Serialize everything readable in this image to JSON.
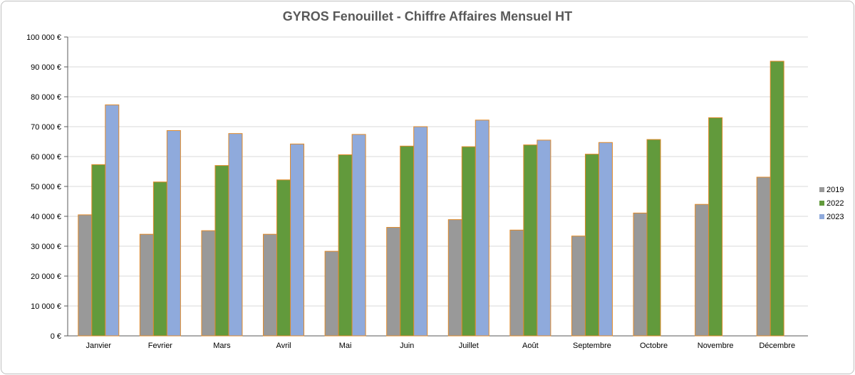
{
  "chart_data": {
    "type": "bar",
    "title": "GYROS Fenouillet - Chiffre Affaires Mensuel HT",
    "xlabel": "",
    "ylabel": "",
    "ylim": [
      0,
      100000
    ],
    "yticks": [
      0,
      10000,
      20000,
      30000,
      40000,
      50000,
      60000,
      70000,
      80000,
      90000,
      100000
    ],
    "ytick_labels": [
      "0 €",
      "10 000 €",
      "20 000 €",
      "30 000 €",
      "40 000 €",
      "50 000 €",
      "60 000 €",
      "70 000 €",
      "80 000 €",
      "90 000 €",
      "100 000 €"
    ],
    "categories": [
      "Janvier",
      "Fevrier",
      "Mars",
      "Avril",
      "Mai",
      "Juin",
      "Juillet",
      "Août",
      "Septembre",
      "Octobre",
      "Novembre",
      "Décembre"
    ],
    "series": [
      {
        "name": "2019",
        "color": "#999999",
        "values": [
          40500,
          34000,
          35200,
          34000,
          28300,
          36300,
          38900,
          35400,
          33400,
          41100,
          44000,
          53100
        ]
      },
      {
        "name": "2022",
        "color": "#629a3c",
        "values": [
          57300,
          51500,
          57000,
          52200,
          60600,
          63500,
          63300,
          63900,
          60800,
          65700,
          73000,
          91900
        ]
      },
      {
        "name": "2023",
        "color": "#8faadc",
        "values": [
          77300,
          68700,
          67700,
          64200,
          67400,
          70000,
          72200,
          65500,
          64700,
          null,
          null,
          null
        ]
      }
    ],
    "grid": true,
    "legend_position": "right",
    "bar_outline_color": "#e08a2a"
  }
}
